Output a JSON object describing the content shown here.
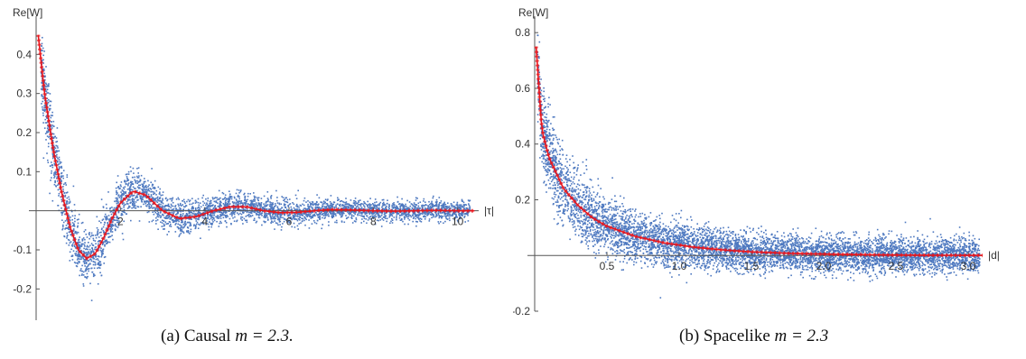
{
  "chart_data": [
    {
      "type": "scatter",
      "caption_prefix": "(a) Causal ",
      "caption_math": "m = 2.3.",
      "ylabel": "Re[W]",
      "xlabel": "|τ|",
      "xlim": [
        0,
        10.5
      ],
      "ylim": [
        -0.28,
        0.47
      ],
      "x_ticks": [
        2,
        4,
        6,
        8,
        10
      ],
      "y_ticks": [
        -0.2,
        -0.1,
        0.1,
        0.2,
        0.3,
        0.4
      ],
      "x_tick_labels": [
        "2",
        "4",
        "6",
        "8",
        "10"
      ],
      "y_tick_labels": [
        "-0.2",
        "-0.1",
        "0.1",
        "0.2",
        "0.3",
        "0.4"
      ],
      "series": [
        {
          "kind": "scatter",
          "color": "#4e79c0",
          "description_values": "dense Monte-Carlo points scattered around the red curve"
        },
        {
          "kind": "line",
          "color": "#e8141b",
          "x": [
            0.05,
            0.2,
            0.4,
            0.6,
            0.8,
            1.0,
            1.2,
            1.4,
            1.6,
            1.8,
            2.0,
            2.3,
            2.6,
            3.0,
            3.4,
            3.8,
            4.2,
            4.6,
            5.0,
            5.4,
            5.8,
            6.2,
            6.6,
            7.0,
            7.5,
            8.0,
            8.5,
            9.0,
            9.5,
            10.0,
            10.4
          ],
          "y": [
            0.45,
            0.3,
            0.16,
            0.05,
            -0.04,
            -0.1,
            -0.122,
            -0.11,
            -0.07,
            -0.02,
            0.02,
            0.05,
            0.04,
            0.0,
            -0.02,
            -0.015,
            0.0,
            0.01,
            0.01,
            0.0,
            -0.005,
            -0.004,
            0.0,
            0.003,
            0.002,
            0.0,
            -0.001,
            0.0,
            0.001,
            0.0,
            0.0
          ]
        }
      ]
    },
    {
      "type": "scatter",
      "caption_prefix": "(b) Spacelike ",
      "caption_math": "m = 2.3",
      "ylabel": "Re[W]",
      "xlabel": "|d|",
      "xlim": [
        0,
        3.1
      ],
      "ylim": [
        -0.2,
        0.82
      ],
      "x_ticks": [
        0.5,
        1.0,
        1.5,
        2.0,
        2.5,
        3.0
      ],
      "y_ticks": [
        -0.2,
        0.2,
        0.4,
        0.6,
        0.8
      ],
      "x_tick_labels": [
        "0.5",
        "1.0",
        "1.5",
        "2.0",
        "2.5",
        "3.0"
      ],
      "y_tick_labels": [
        "-0.2",
        "0.2",
        "0.4",
        "0.6",
        "0.8"
      ],
      "series": [
        {
          "kind": "scatter",
          "color": "#4e79c0",
          "description_values": "dense Monte-Carlo points scattered around the red curve"
        },
        {
          "kind": "line",
          "color": "#e8141b",
          "x": [
            0.01,
            0.05,
            0.1,
            0.2,
            0.3,
            0.4,
            0.5,
            0.7,
            0.9,
            1.1,
            1.3,
            1.5,
            1.8,
            2.1,
            2.4,
            2.7,
            3.0,
            3.1
          ],
          "y": [
            0.75,
            0.45,
            0.35,
            0.24,
            0.18,
            0.135,
            0.105,
            0.068,
            0.045,
            0.03,
            0.02,
            0.013,
            0.007,
            0.004,
            0.002,
            0.001,
            0.0005,
            0.0004
          ]
        }
      ]
    }
  ]
}
